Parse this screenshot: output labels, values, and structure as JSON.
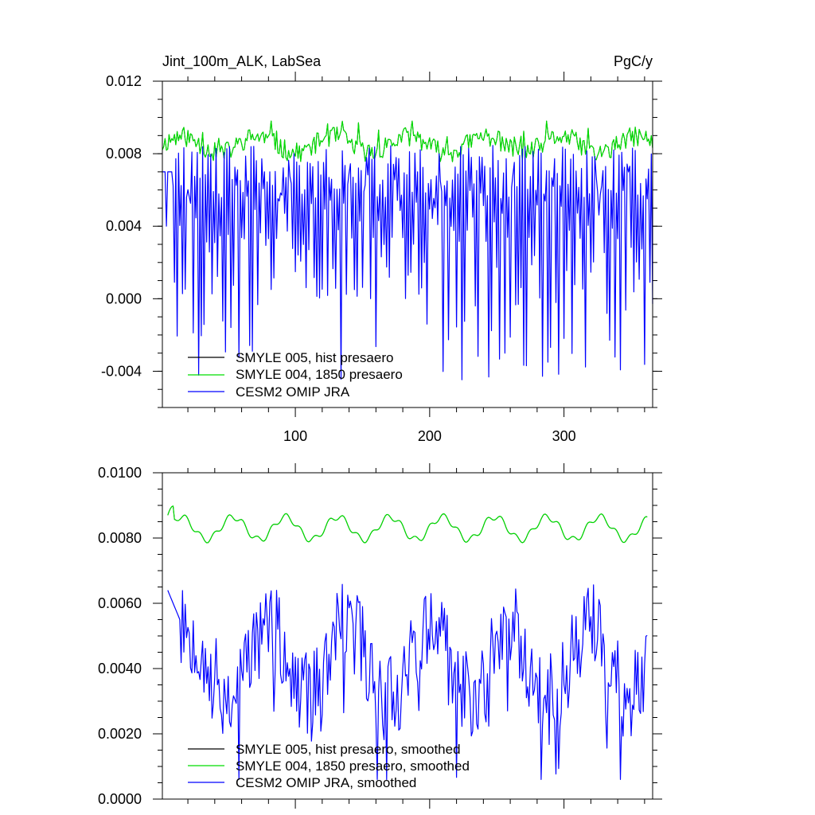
{
  "colors": {
    "smyle005": "#000000",
    "smyle004": "#00dd00",
    "cesm2": "#0000ff",
    "frame": "#000000",
    "background": "#ffffff"
  },
  "chart_data": [
    {
      "type": "line",
      "title": "Jint_100m_ALK, LabSea",
      "units": "PgC/y",
      "xlim": [
        1,
        366
      ],
      "ylim": [
        -0.006,
        0.012
      ],
      "x_ticks": [
        100,
        200,
        300
      ],
      "x_tick_labels": [
        "100",
        "200",
        "300"
      ],
      "y_ticks": [
        -0.004,
        0.0,
        0.004,
        0.008,
        0.012
      ],
      "y_tick_labels": [
        "-0.004",
        "0.000",
        "0.004",
        "0.008",
        "0.012"
      ],
      "legend_position": "bottom-left",
      "series": [
        {
          "name": "SMYLE 005, hist presaero",
          "color_key": "smyle005",
          "description": "coincides with the SMYLE 004 curve",
          "x_start": 1,
          "x_end": 366,
          "n": 366,
          "values_summary": {
            "mean": 0.0085,
            "min": 0.0075,
            "max": 0.0098
          }
        },
        {
          "name": "SMYLE 004, 1850 presaero",
          "color_key": "smyle004",
          "x_start": 1,
          "x_end": 366,
          "n": 366,
          "values_summary": {
            "mean": 0.0085,
            "min": 0.0075,
            "max": 0.0098
          }
        },
        {
          "name": "CESM2 OMIP JRA",
          "color_key": "cesm2",
          "x_start": 1,
          "x_end": 366,
          "n": 366,
          "values_summary": {
            "mean": 0.0035,
            "min": -0.0051,
            "max": 0.0085
          }
        }
      ]
    },
    {
      "type": "line",
      "title": "",
      "units": "",
      "xlim": [
        1,
        366
      ],
      "ylim": [
        0.0,
        0.01
      ],
      "x_ticks": [
        100,
        200,
        300
      ],
      "x_tick_labels": [
        "",
        "",
        ""
      ],
      "y_ticks": [
        0.0,
        0.002,
        0.004,
        0.006,
        0.008,
        0.01
      ],
      "y_tick_labels": [
        "0.0000",
        "0.0020",
        "0.0040",
        "0.0060",
        "0.0080",
        "0.0100"
      ],
      "legend_position": "bottom-left",
      "series": [
        {
          "name": "SMYLE 005, hist presaero, smoothed",
          "color_key": "smyle005",
          "x_start": 5,
          "x_end": 362,
          "n": 358,
          "values_summary": {
            "mean": 0.0083,
            "min": 0.0078,
            "max": 0.0089
          }
        },
        {
          "name": "SMYLE 004, 1850 presaero, smoothed",
          "color_key": "smyle004",
          "x_start": 5,
          "x_end": 362,
          "n": 358,
          "values_summary": {
            "mean": 0.0083,
            "min": 0.0078,
            "max": 0.0089
          }
        },
        {
          "name": "CESM2 OMIP JRA, smoothed",
          "color_key": "cesm2",
          "x_start": 5,
          "x_end": 362,
          "n": 358,
          "values_summary": {
            "mean": 0.0042,
            "min": 0.0006,
            "max": 0.0066
          }
        }
      ]
    }
  ]
}
